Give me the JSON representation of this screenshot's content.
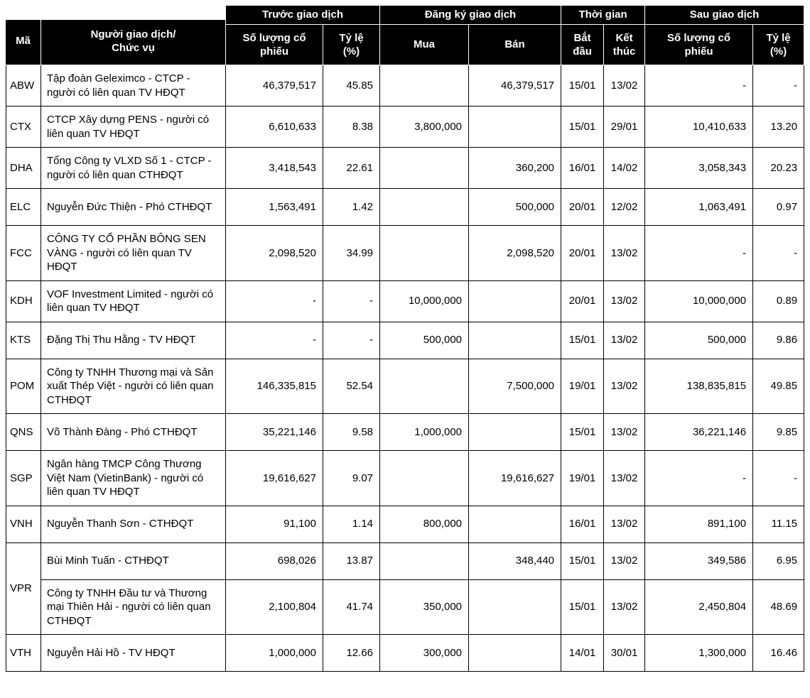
{
  "colors": {
    "header_bg": "#000000",
    "header_text": "#ffffff",
    "header_divider": "#ffffff",
    "border": "#000000",
    "text": "#000000",
    "bg": "#ffffff"
  },
  "chart_data": {
    "type": "table",
    "title": "",
    "corner_headers": [
      "Mã",
      "Người giao dịch/\nChức vụ"
    ],
    "groups": [
      {
        "label": "Trước giao dịch",
        "columns": [
          "Số lượng cổ\nphiếu",
          "Tỷ lệ\n(%)"
        ]
      },
      {
        "label": "Đăng ký giao dịch",
        "columns": [
          "Mua",
          "Bán"
        ]
      },
      {
        "label": "Thời gian",
        "columns": [
          "Bắt\nđầu",
          "Kết\nthúc"
        ]
      },
      {
        "label": "Sau giao dịch",
        "columns": [
          "Số lượng cổ\nphiếu",
          "Tỷ lệ\n(%)"
        ]
      }
    ],
    "rows": [
      {
        "code": "ABW",
        "name": "Tập đoàn Geleximco - CTCP - người có liên quan TV HĐQT",
        "before_qty": "46,379,517",
        "before_pct": "45.85",
        "buy": "",
        "sell": "46,379,517",
        "start": "15/01",
        "end": "13/02",
        "after_qty": "-",
        "after_pct": "-"
      },
      {
        "code": "CTX",
        "name": "CTCP Xây dựng PENS - người có liên quan TV HĐQT",
        "before_qty": "6,610,633",
        "before_pct": "8.38",
        "buy": "3,800,000",
        "sell": "",
        "start": "15/01",
        "end": "29/01",
        "after_qty": "10,410,633",
        "after_pct": "13.20"
      },
      {
        "code": "DHA",
        "name": "Tổng Công ty VLXD Số 1 - CTCP - người có liên quan CTHĐQT",
        "before_qty": "3,418,543",
        "before_pct": "22.61",
        "buy": "",
        "sell": "360,200",
        "start": "16/01",
        "end": "14/02",
        "after_qty": "3,058,343",
        "after_pct": "20.23"
      },
      {
        "code": "ELC",
        "name": "Nguyễn Đức Thiện - Phó CTHĐQT",
        "before_qty": "1,563,491",
        "before_pct": "1.42",
        "buy": "",
        "sell": "500,000",
        "start": "20/01",
        "end": "12/02",
        "after_qty": "1,063,491",
        "after_pct": "0.97"
      },
      {
        "code": "FCC",
        "name": "CÔNG TY CỔ PHẦN BÔNG SEN VÀNG - người có liên quan TV HĐQT",
        "before_qty": "2,098,520",
        "before_pct": "34.99",
        "buy": "",
        "sell": "2,098,520",
        "start": "20/01",
        "end": "13/02",
        "after_qty": "-",
        "after_pct": "-"
      },
      {
        "code": "KDH",
        "name": "VOF Investment Limited - người có liên quan TV HĐQT",
        "before_qty": "-",
        "before_pct": "-",
        "buy": "10,000,000",
        "sell": "",
        "start": "20/01",
        "end": "13/02",
        "after_qty": "10,000,000",
        "after_pct": "0.89"
      },
      {
        "code": "KTS",
        "name": "Đặng Thị Thu Hằng - TV HĐQT",
        "before_qty": "-",
        "before_pct": "-",
        "buy": "500,000",
        "sell": "",
        "start": "15/01",
        "end": "13/02",
        "after_qty": "500,000",
        "after_pct": "9.86"
      },
      {
        "code": "POM",
        "name": "Công ty TNHH Thương mại và Sản xuất Thép Việt - người có liên quan CTHĐQT",
        "before_qty": "146,335,815",
        "before_pct": "52.54",
        "buy": "",
        "sell": "7,500,000",
        "start": "19/01",
        "end": "13/02",
        "after_qty": "138,835,815",
        "after_pct": "49.85"
      },
      {
        "code": "QNS",
        "name": "Võ Thành Đàng - Phó CTHĐQT",
        "before_qty": "35,221,146",
        "before_pct": "9.58",
        "buy": "1,000,000",
        "sell": "",
        "start": "15/01",
        "end": "13/02",
        "after_qty": "36,221,146",
        "after_pct": "9.85"
      },
      {
        "code": "SGP",
        "name": "Ngân hàng TMCP Công Thương Việt Nam (VietinBank) - người có liên quan TV HĐQT",
        "before_qty": "19,616,627",
        "before_pct": "9.07",
        "buy": "",
        "sell": "19,616,627",
        "start": "19/01",
        "end": "13/02",
        "after_qty": "-",
        "after_pct": "-"
      },
      {
        "code": "VNH",
        "name": "Nguyễn Thanh Sơn - CTHĐQT",
        "before_qty": "91,100",
        "before_pct": "1.14",
        "buy": "800,000",
        "sell": "",
        "start": "16/01",
        "end": "13/02",
        "after_qty": "891,100",
        "after_pct": "11.15"
      },
      {
        "code": "VPR",
        "code_rowspan": 2,
        "name": "Bùi Minh Tuấn - CTHĐQT",
        "before_qty": "698,026",
        "before_pct": "13.87",
        "buy": "",
        "sell": "348,440",
        "start": "15/01",
        "end": "13/02",
        "after_qty": "349,586",
        "after_pct": "6.95"
      },
      {
        "name": "Công ty TNHH Đầu tư và Thương mại Thiên Hải - người có liên quan CTHĐQT",
        "before_qty": "2,100,804",
        "before_pct": "41.74",
        "buy": "350,000",
        "sell": "",
        "start": "15/01",
        "end": "13/02",
        "after_qty": "2,450,804",
        "after_pct": "48.69"
      },
      {
        "code": "VTH",
        "name": "Nguyễn Hải Hồ - TV HĐQT",
        "before_qty": "1,000,000",
        "before_pct": "12.66",
        "buy": "300,000",
        "sell": "",
        "start": "14/01",
        "end": "30/01",
        "after_qty": "1,300,000",
        "after_pct": "16.46"
      }
    ]
  }
}
